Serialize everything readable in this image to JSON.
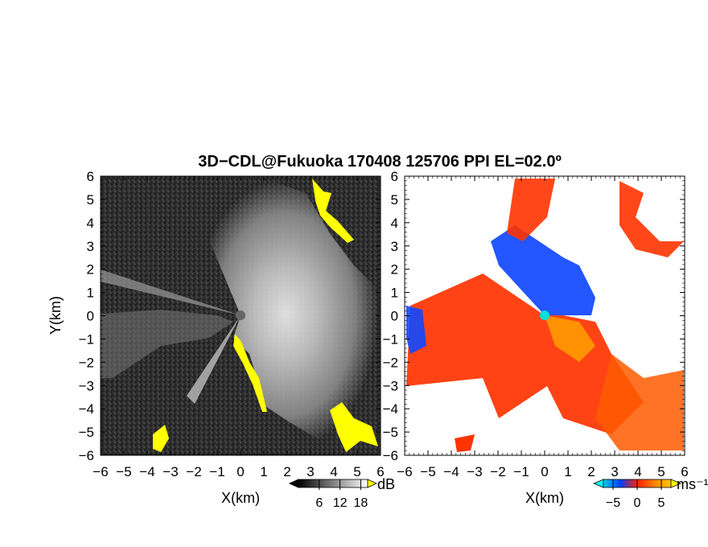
{
  "title": "3D−CDL@Fukuoka 170408 125706 PPI EL=02.0º",
  "chart_data": [
    {
      "type": "heatmap",
      "name": "reflectivity-ppi",
      "xlabel": "X(km)",
      "ylabel": "Y(km)",
      "xlim": [
        -6,
        6
      ],
      "ylim": [
        -6,
        6
      ],
      "xticks": [
        "−6",
        "−5",
        "−4",
        "−3",
        "−2",
        "−1",
        "0",
        "1",
        "2",
        "3",
        "4",
        "5",
        "6"
      ],
      "yticks": [
        "−6",
        "−5",
        "−4",
        "−3",
        "−2",
        "−1",
        "0",
        "1",
        "2",
        "3",
        "4",
        "5",
        "6"
      ],
      "colorbar": {
        "unit": "dB",
        "ticks": [
          "6",
          "12",
          "18"
        ],
        "tick_values": [
          6,
          12,
          18
        ],
        "range": [
          0,
          20
        ],
        "colors": [
          "#000000",
          "#ffffff"
        ],
        "overflow_color": "#ffff00"
      }
    },
    {
      "type": "heatmap",
      "name": "doppler-velocity-ppi",
      "xlabel": "X(km)",
      "ylabel": "",
      "xlim": [
        -6,
        6
      ],
      "ylim": [
        -6,
        6
      ],
      "xticks": [
        "−6",
        "−5",
        "−4",
        "−3",
        "−2",
        "−1",
        "0",
        "1",
        "2",
        "3",
        "4",
        "5",
        "6"
      ],
      "yticks": [
        "−6",
        "−5",
        "−4",
        "−3",
        "−2",
        "−1",
        "0",
        "1",
        "2",
        "3",
        "4",
        "5",
        "6"
      ],
      "colorbar": {
        "unit": "ms⁻¹",
        "ticks": [
          "−5",
          "0",
          "5"
        ],
        "tick_values": [
          -5,
          0,
          5
        ],
        "range": [
          -7,
          7
        ],
        "colors": [
          "#00ccee",
          "#0040ff",
          "#ff2000",
          "#ff8000",
          "#ffcc00"
        ],
        "underflow_color": "#00ffff",
        "overflow_color": "#ffff00"
      }
    }
  ]
}
